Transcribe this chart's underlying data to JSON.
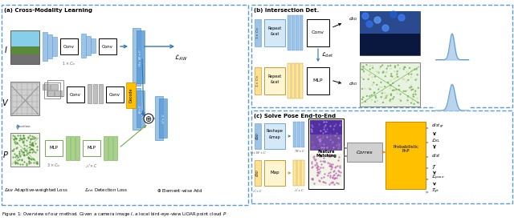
{
  "figure_caption": "Figure 1: Overview of our method. Given a camera image I, a local bird-eye-view LiDAR point cloud P",
  "bg_color": "#ffffff",
  "panel_a_title": "(a) Cross-Modality Learning",
  "panel_b_title": "(b) Intersection Det.",
  "panel_c_title": "(c) Solve Pose End-to-End",
  "blue_color": "#5B9BD5",
  "blue_light": "#9DC3E6",
  "blue_dark": "#2E75B6",
  "green_color": "#70AD47",
  "green_light": "#A9D18E",
  "gray_color": "#808080",
  "gray_light": "#BFBFBF",
  "yellow_color": "#FFC000",
  "orange_color": "#ED7D31",
  "figsize": [
    6.4,
    2.76
  ],
  "dpi": 100
}
